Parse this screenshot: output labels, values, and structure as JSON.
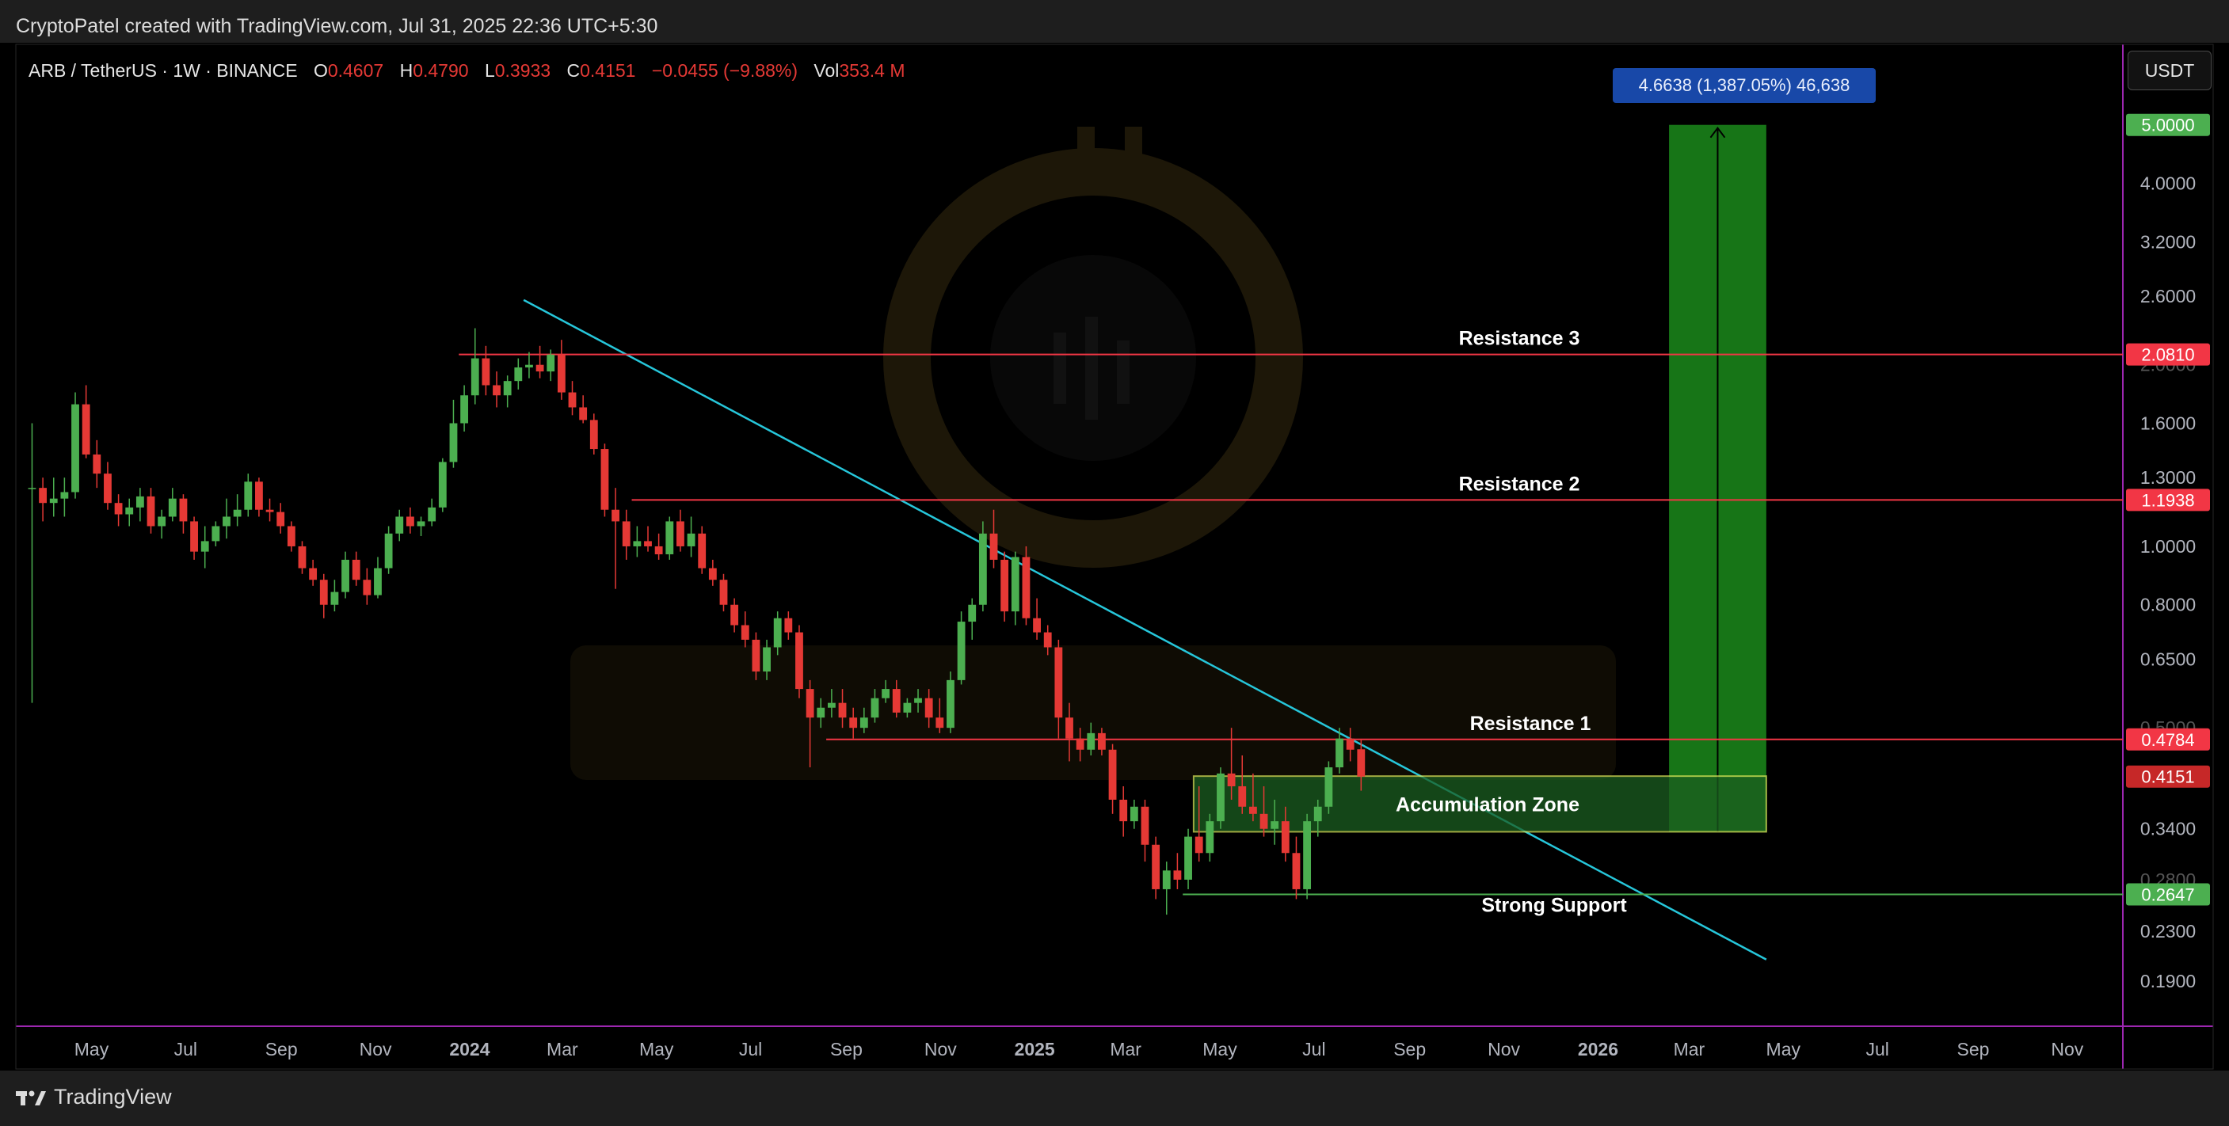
{
  "header": {
    "credit": "CryptoPatel created with TradingView.com, Jul 31, 2025 22:36 UTC+5:30"
  },
  "symbol_bar": {
    "symbol": "ARB / TetherUS · 1W · BINANCE",
    "o_label": "O",
    "o_value": "0.4607",
    "h_label": "H",
    "h_value": "0.4790",
    "l_label": "L",
    "l_value": "0.3933",
    "c_label": "C",
    "c_value": "0.4151",
    "change": "−0.0455 (−9.88%)",
    "vol_label": "Vol",
    "vol_value": "353.4 M"
  },
  "currency_button": "USDT",
  "footer": {
    "brand": "TradingView"
  },
  "measure": {
    "label": "4.6638 (1,387.05%) 46,638",
    "from": 0.3362,
    "to": 5.0
  },
  "colors": {
    "bg": "#000000",
    "up": "#4caf50",
    "down": "#e53935",
    "resistance": "#f23645",
    "support": "#4caf50",
    "trendline": "#26c6da",
    "zone_fill": "#1b5e20",
    "zone_border": "#d4e157",
    "measure_fill": "#1b8a1b",
    "grid_border": "#9c27b0"
  },
  "chart_data": {
    "type": "candlestick",
    "scale": "log",
    "ylim": [
      0.16,
      6.8
    ],
    "xlim": [
      "2023-03-13",
      "2026-12-07"
    ],
    "y_ticks": [
      {
        "value": 4.0,
        "label": "4.0000"
      },
      {
        "value": 3.2,
        "label": "3.2000"
      },
      {
        "value": 2.6,
        "label": "2.6000"
      },
      {
        "value": 2.0,
        "label": "2.0000"
      },
      {
        "value": 1.6,
        "label": "1.6000"
      },
      {
        "value": 1.3,
        "label": "1.3000"
      },
      {
        "value": 1.0,
        "label": "1.0000"
      },
      {
        "value": 0.8,
        "label": "0.8000"
      },
      {
        "value": 0.65,
        "label": "0.6500"
      },
      {
        "value": 0.5,
        "label": "0.5000"
      },
      {
        "value": 0.34,
        "label": "0.3400"
      },
      {
        "value": 0.28,
        "label": "0.2800"
      },
      {
        "value": 0.23,
        "label": "0.2300"
      },
      {
        "value": 0.19,
        "label": "0.1900"
      }
    ],
    "x_ticks": [
      {
        "date": "2023-05-01",
        "label": "May"
      },
      {
        "date": "2023-07-01",
        "label": "Jul"
      },
      {
        "date": "2023-09-01",
        "label": "Sep"
      },
      {
        "date": "2023-11-01",
        "label": "Nov"
      },
      {
        "date": "2024-01-01",
        "label": "2024",
        "bold": true
      },
      {
        "date": "2024-03-01",
        "label": "Mar"
      },
      {
        "date": "2024-05-01",
        "label": "May"
      },
      {
        "date": "2024-07-01",
        "label": "Jul"
      },
      {
        "date": "2024-09-01",
        "label": "Sep"
      },
      {
        "date": "2024-11-01",
        "label": "Nov"
      },
      {
        "date": "2025-01-01",
        "label": "2025",
        "bold": true
      },
      {
        "date": "2025-03-01",
        "label": "Mar"
      },
      {
        "date": "2025-05-01",
        "label": "May"
      },
      {
        "date": "2025-07-01",
        "label": "Jul"
      },
      {
        "date": "2025-09-01",
        "label": "Sep"
      },
      {
        "date": "2025-11-01",
        "label": "Nov"
      },
      {
        "date": "2026-01-01",
        "label": "2026",
        "bold": true
      },
      {
        "date": "2026-03-01",
        "label": "Mar"
      },
      {
        "date": "2026-05-01",
        "label": "May"
      },
      {
        "date": "2026-07-01",
        "label": "Jul"
      },
      {
        "date": "2026-09-01",
        "label": "Sep"
      },
      {
        "date": "2026-11-01",
        "label": "Nov"
      }
    ],
    "price_badges": [
      {
        "value": 5.0,
        "label": "5.0000",
        "color": "#4caf50"
      },
      {
        "value": 2.081,
        "label": "2.0810",
        "color": "#f23645"
      },
      {
        "value": 1.1938,
        "label": "1.1938",
        "color": "#f23645"
      },
      {
        "value": 0.4784,
        "label": "0.4784",
        "color": "#f23645"
      },
      {
        "value": 0.4151,
        "label": "0.4151",
        "color": "#c62828"
      },
      {
        "value": 0.2647,
        "label": "0.2647",
        "color": "#4caf50"
      }
    ],
    "levels": [
      {
        "name": "Resistance 3",
        "value": 2.081,
        "from": "2023-12-25",
        "color": "#f23645"
      },
      {
        "name": "Resistance 2",
        "value": 1.1938,
        "from": "2024-04-15",
        "color": "#f23645"
      },
      {
        "name": "Resistance 1",
        "value": 0.4784,
        "from": "2024-08-19",
        "color": "#f23645"
      },
      {
        "name": "Strong Support",
        "value": 0.2647,
        "from": "2025-04-07",
        "color": "#4caf50"
      }
    ],
    "zone": {
      "name": "Accumulation Zone",
      "from": "2025-04-14",
      "to": "2026-04-20",
      "low": 0.3362,
      "high": 0.4158
    },
    "trendline": {
      "x1": "2024-02-05",
      "y1": 2.5618,
      "x2": "2026-04-20",
      "y2": 0.2064
    },
    "candles": [
      [
        "2023-03-20",
        1.25,
        1.6,
        0.55,
        1.25
      ],
      [
        "2023-03-27",
        1.25,
        1.3,
        1.1,
        1.18
      ],
      [
        "2023-04-03",
        1.18,
        1.3,
        1.12,
        1.2
      ],
      [
        "2023-04-10",
        1.2,
        1.3,
        1.12,
        1.23
      ],
      [
        "2023-04-17",
        1.23,
        1.8,
        1.2,
        1.72
      ],
      [
        "2023-04-24",
        1.72,
        1.85,
        1.4,
        1.42
      ],
      [
        "2023-05-01",
        1.42,
        1.5,
        1.25,
        1.32
      ],
      [
        "2023-05-08",
        1.32,
        1.38,
        1.15,
        1.18
      ],
      [
        "2023-05-15",
        1.18,
        1.22,
        1.08,
        1.13
      ],
      [
        "2023-05-22",
        1.13,
        1.2,
        1.08,
        1.16
      ],
      [
        "2023-05-29",
        1.16,
        1.25,
        1.1,
        1.21
      ],
      [
        "2023-06-05",
        1.21,
        1.25,
        1.05,
        1.08
      ],
      [
        "2023-06-12",
        1.08,
        1.15,
        1.03,
        1.12
      ],
      [
        "2023-06-19",
        1.12,
        1.25,
        1.1,
        1.2
      ],
      [
        "2023-06-26",
        1.2,
        1.22,
        1.05,
        1.1
      ],
      [
        "2023-07-03",
        1.1,
        1.12,
        0.95,
        0.98
      ],
      [
        "2023-07-10",
        0.98,
        1.08,
        0.92,
        1.02
      ],
      [
        "2023-07-17",
        1.02,
        1.1,
        1.0,
        1.08
      ],
      [
        "2023-07-24",
        1.08,
        1.2,
        1.03,
        1.12
      ],
      [
        "2023-07-31",
        1.12,
        1.22,
        1.08,
        1.15
      ],
      [
        "2023-08-07",
        1.15,
        1.32,
        1.12,
        1.28
      ],
      [
        "2023-08-14",
        1.28,
        1.3,
        1.12,
        1.15
      ],
      [
        "2023-08-21",
        1.15,
        1.2,
        1.1,
        1.14
      ],
      [
        "2023-08-28",
        1.14,
        1.18,
        1.05,
        1.08
      ],
      [
        "2023-09-04",
        1.08,
        1.1,
        0.98,
        1.0
      ],
      [
        "2023-09-11",
        1.0,
        1.02,
        0.9,
        0.92
      ],
      [
        "2023-09-18",
        0.92,
        0.95,
        0.86,
        0.88
      ],
      [
        "2023-09-25",
        0.88,
        0.9,
        0.76,
        0.8
      ],
      [
        "2023-10-02",
        0.8,
        0.88,
        0.78,
        0.84
      ],
      [
        "2023-10-09",
        0.84,
        0.98,
        0.82,
        0.95
      ],
      [
        "2023-10-16",
        0.95,
        0.98,
        0.86,
        0.88
      ],
      [
        "2023-10-23",
        0.88,
        0.92,
        0.8,
        0.83
      ],
      [
        "2023-10-30",
        0.83,
        0.96,
        0.82,
        0.92
      ],
      [
        "2023-11-06",
        0.92,
        1.08,
        0.9,
        1.05
      ],
      [
        "2023-11-13",
        1.05,
        1.15,
        1.02,
        1.12
      ],
      [
        "2023-11-20",
        1.12,
        1.16,
        1.05,
        1.08
      ],
      [
        "2023-11-27",
        1.08,
        1.12,
        1.04,
        1.1
      ],
      [
        "2023-12-04",
        1.1,
        1.2,
        1.08,
        1.16
      ],
      [
        "2023-12-11",
        1.16,
        1.4,
        1.14,
        1.38
      ],
      [
        "2023-12-18",
        1.38,
        1.75,
        1.35,
        1.6
      ],
      [
        "2023-12-25",
        1.6,
        1.85,
        1.55,
        1.78
      ],
      [
        "2024-01-01",
        1.78,
        2.3,
        1.72,
        2.05
      ],
      [
        "2024-01-08",
        2.05,
        2.15,
        1.78,
        1.85
      ],
      [
        "2024-01-15",
        1.85,
        1.95,
        1.7,
        1.78
      ],
      [
        "2024-01-22",
        1.78,
        1.92,
        1.7,
        1.88
      ],
      [
        "2024-01-29",
        1.88,
        2.05,
        1.82,
        1.98
      ],
      [
        "2024-02-05",
        1.98,
        2.1,
        1.9,
        2.0
      ],
      [
        "2024-02-12",
        2.0,
        2.15,
        1.9,
        1.95
      ],
      [
        "2024-02-19",
        1.95,
        2.12,
        1.88,
        2.08
      ],
      [
        "2024-02-26",
        2.08,
        2.2,
        1.75,
        1.8
      ],
      [
        "2024-03-04",
        1.8,
        1.88,
        1.65,
        1.7
      ],
      [
        "2024-03-11",
        1.7,
        1.78,
        1.6,
        1.62
      ],
      [
        "2024-03-18",
        1.62,
        1.66,
        1.42,
        1.45
      ],
      [
        "2024-03-25",
        1.45,
        1.48,
        1.12,
        1.15
      ],
      [
        "2024-04-01",
        1.15,
        1.25,
        0.85,
        1.1
      ],
      [
        "2024-04-08",
        1.1,
        1.15,
        0.95,
        1.0
      ],
      [
        "2024-04-15",
        1.0,
        1.08,
        0.96,
        1.02
      ],
      [
        "2024-04-22",
        1.02,
        1.08,
        0.98,
        1.0
      ],
      [
        "2024-04-29",
        1.0,
        1.05,
        0.95,
        0.97
      ],
      [
        "2024-05-06",
        0.97,
        1.12,
        0.95,
        1.1
      ],
      [
        "2024-05-13",
        1.1,
        1.15,
        0.98,
        1.0
      ],
      [
        "2024-05-20",
        1.0,
        1.12,
        0.96,
        1.05
      ],
      [
        "2024-05-27",
        1.05,
        1.08,
        0.9,
        0.92
      ],
      [
        "2024-06-03",
        0.92,
        0.95,
        0.86,
        0.88
      ],
      [
        "2024-06-10",
        0.88,
        0.9,
        0.78,
        0.8
      ],
      [
        "2024-06-17",
        0.8,
        0.82,
        0.72,
        0.74
      ],
      [
        "2024-06-24",
        0.74,
        0.78,
        0.68,
        0.7
      ],
      [
        "2024-07-01",
        0.7,
        0.72,
        0.6,
        0.62
      ],
      [
        "2024-07-08",
        0.62,
        0.7,
        0.6,
        0.68
      ],
      [
        "2024-07-15",
        0.68,
        0.78,
        0.66,
        0.76
      ],
      [
        "2024-07-22",
        0.76,
        0.78,
        0.7,
        0.72
      ],
      [
        "2024-07-29",
        0.72,
        0.74,
        0.56,
        0.58
      ],
      [
        "2024-08-05",
        0.58,
        0.6,
        0.43,
        0.52
      ],
      [
        "2024-08-12",
        0.52,
        0.56,
        0.5,
        0.54
      ],
      [
        "2024-08-19",
        0.54,
        0.58,
        0.52,
        0.55
      ],
      [
        "2024-08-26",
        0.55,
        0.58,
        0.5,
        0.52
      ],
      [
        "2024-09-02",
        0.52,
        0.54,
        0.48,
        0.5
      ],
      [
        "2024-09-09",
        0.5,
        0.54,
        0.49,
        0.52
      ],
      [
        "2024-09-16",
        0.52,
        0.58,
        0.51,
        0.56
      ],
      [
        "2024-09-23",
        0.56,
        0.6,
        0.55,
        0.58
      ],
      [
        "2024-09-30",
        0.58,
        0.6,
        0.52,
        0.53
      ],
      [
        "2024-10-07",
        0.53,
        0.56,
        0.52,
        0.55
      ],
      [
        "2024-10-14",
        0.55,
        0.58,
        0.53,
        0.56
      ],
      [
        "2024-10-21",
        0.56,
        0.58,
        0.5,
        0.52
      ],
      [
        "2024-10-28",
        0.52,
        0.56,
        0.49,
        0.5
      ],
      [
        "2024-11-04",
        0.5,
        0.62,
        0.49,
        0.6
      ],
      [
        "2024-11-11",
        0.6,
        0.78,
        0.59,
        0.75
      ],
      [
        "2024-11-18",
        0.75,
        0.82,
        0.7,
        0.8
      ],
      [
        "2024-11-25",
        0.8,
        1.1,
        0.78,
        1.05
      ],
      [
        "2024-12-02",
        1.05,
        1.15,
        0.92,
        0.95
      ],
      [
        "2024-12-09",
        0.95,
        0.98,
        0.75,
        0.78
      ],
      [
        "2024-12-16",
        0.78,
        0.98,
        0.74,
        0.96
      ],
      [
        "2024-12-23",
        0.96,
        1.0,
        0.74,
        0.76
      ],
      [
        "2024-12-30",
        0.76,
        0.82,
        0.7,
        0.72
      ],
      [
        "2025-01-06",
        0.72,
        0.74,
        0.66,
        0.68
      ],
      [
        "2025-01-13",
        0.68,
        0.7,
        0.48,
        0.52
      ],
      [
        "2025-01-20",
        0.52,
        0.55,
        0.44,
        0.48
      ],
      [
        "2025-01-27",
        0.48,
        0.5,
        0.44,
        0.46
      ],
      [
        "2025-02-03",
        0.46,
        0.51,
        0.45,
        0.49
      ],
      [
        "2025-02-10",
        0.49,
        0.5,
        0.45,
        0.46
      ],
      [
        "2025-02-17",
        0.46,
        0.47,
        0.36,
        0.38
      ],
      [
        "2025-02-24",
        0.38,
        0.4,
        0.33,
        0.35
      ],
      [
        "2025-03-03",
        0.35,
        0.38,
        0.34,
        0.37
      ],
      [
        "2025-03-10",
        0.37,
        0.38,
        0.3,
        0.32
      ],
      [
        "2025-03-17",
        0.32,
        0.33,
        0.26,
        0.27
      ],
      [
        "2025-03-24",
        0.27,
        0.3,
        0.245,
        0.29
      ],
      [
        "2025-03-31",
        0.29,
        0.31,
        0.27,
        0.28
      ],
      [
        "2025-04-07",
        0.28,
        0.34,
        0.27,
        0.33
      ],
      [
        "2025-04-14",
        0.33,
        0.4,
        0.3,
        0.31
      ],
      [
        "2025-04-21",
        0.31,
        0.36,
        0.3,
        0.35
      ],
      [
        "2025-04-28",
        0.35,
        0.43,
        0.34,
        0.42
      ],
      [
        "2025-05-05",
        0.42,
        0.5,
        0.38,
        0.4
      ],
      [
        "2025-05-12",
        0.4,
        0.45,
        0.36,
        0.37
      ],
      [
        "2025-05-19",
        0.37,
        0.42,
        0.35,
        0.36
      ],
      [
        "2025-05-26",
        0.36,
        0.4,
        0.33,
        0.34
      ],
      [
        "2025-06-02",
        0.34,
        0.38,
        0.32,
        0.35
      ],
      [
        "2025-06-09",
        0.35,
        0.37,
        0.3,
        0.31
      ],
      [
        "2025-06-16",
        0.31,
        0.33,
        0.26,
        0.27
      ],
      [
        "2025-06-23",
        0.27,
        0.36,
        0.26,
        0.35
      ],
      [
        "2025-06-30",
        0.35,
        0.38,
        0.33,
        0.37
      ],
      [
        "2025-07-07",
        0.37,
        0.44,
        0.36,
        0.43
      ],
      [
        "2025-07-14",
        0.43,
        0.5,
        0.42,
        0.48
      ],
      [
        "2025-07-21",
        0.48,
        0.5,
        0.44,
        0.46
      ],
      [
        "2025-07-28",
        0.4607,
        0.479,
        0.3933,
        0.4151
      ]
    ]
  }
}
